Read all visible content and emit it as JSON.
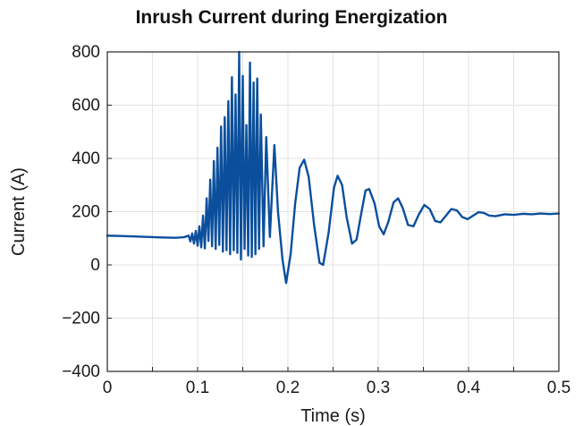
{
  "chart_data": {
    "type": "line",
    "title": "Inrush Current during Energization",
    "xlabel": "Time (s)",
    "ylabel": "Current (A)",
    "xlim": [
      0,
      0.5
    ],
    "ylim": [
      -400,
      800
    ],
    "grid": true,
    "x_ticks": [
      0,
      0.05,
      0.1,
      0.15,
      0.2,
      0.25,
      0.3,
      0.35,
      0.4,
      0.45,
      0.5
    ],
    "x_tick_labels": [
      "0",
      "",
      "0.1",
      "",
      "0.2",
      "",
      "0.3",
      "",
      "0.4",
      "",
      "0.5"
    ],
    "y_ticks": [
      -400,
      -200,
      0,
      200,
      400,
      600,
      800
    ],
    "y_tick_labels": [
      "−400",
      "−200",
      "0",
      "200",
      "400",
      "600",
      "800"
    ],
    "series": [
      {
        "color": "#0b4f9c",
        "points": [
          [
            0.0,
            110
          ],
          [
            0.03,
            107
          ],
          [
            0.06,
            103
          ],
          [
            0.075,
            102
          ],
          [
            0.085,
            104
          ],
          [
            0.09,
            110
          ],
          [
            0.092,
            88
          ],
          [
            0.094,
            118
          ],
          [
            0.096,
            80
          ],
          [
            0.098,
            128
          ],
          [
            0.1,
            72
          ],
          [
            0.102,
            145
          ],
          [
            0.104,
            66
          ],
          [
            0.106,
            185
          ],
          [
            0.108,
            62
          ],
          [
            0.11,
            250
          ],
          [
            0.112,
            90
          ],
          [
            0.114,
            320
          ],
          [
            0.116,
            70
          ],
          [
            0.118,
            390
          ],
          [
            0.12,
            60
          ],
          [
            0.122,
            440
          ],
          [
            0.124,
            75
          ],
          [
            0.126,
            520
          ],
          [
            0.128,
            50
          ],
          [
            0.13,
            555
          ],
          [
            0.132,
            55
          ],
          [
            0.134,
            615
          ],
          [
            0.136,
            40
          ],
          [
            0.138,
            705
          ],
          [
            0.14,
            55
          ],
          [
            0.142,
            640
          ],
          [
            0.144,
            45
          ],
          [
            0.146,
            800
          ],
          [
            0.148,
            20
          ],
          [
            0.15,
            710
          ],
          [
            0.152,
            60
          ],
          [
            0.154,
            525
          ],
          [
            0.156,
            35
          ],
          [
            0.158,
            760
          ],
          [
            0.16,
            30
          ],
          [
            0.162,
            685
          ],
          [
            0.164,
            40
          ],
          [
            0.166,
            700
          ],
          [
            0.168,
            60
          ],
          [
            0.17,
            565
          ],
          [
            0.173,
            70
          ],
          [
            0.176,
            480
          ],
          [
            0.18,
            105
          ],
          [
            0.185,
            450
          ],
          [
            0.189,
            200
          ],
          [
            0.194,
            20
          ],
          [
            0.198,
            -68
          ],
          [
            0.203,
            40
          ],
          [
            0.208,
            230
          ],
          [
            0.213,
            365
          ],
          [
            0.218,
            395
          ],
          [
            0.223,
            330
          ],
          [
            0.229,
            150
          ],
          [
            0.235,
            8
          ],
          [
            0.239,
            0
          ],
          [
            0.245,
            120
          ],
          [
            0.251,
            290
          ],
          [
            0.255,
            335
          ],
          [
            0.26,
            300
          ],
          [
            0.265,
            180
          ],
          [
            0.271,
            80
          ],
          [
            0.276,
            95
          ],
          [
            0.281,
            190
          ],
          [
            0.286,
            280
          ],
          [
            0.29,
            285
          ],
          [
            0.296,
            230
          ],
          [
            0.301,
            145
          ],
          [
            0.306,
            115
          ],
          [
            0.311,
            160
          ],
          [
            0.317,
            235
          ],
          [
            0.322,
            250
          ],
          [
            0.327,
            215
          ],
          [
            0.333,
            150
          ],
          [
            0.339,
            145
          ],
          [
            0.345,
            190
          ],
          [
            0.351,
            225
          ],
          [
            0.357,
            210
          ],
          [
            0.363,
            165
          ],
          [
            0.369,
            160
          ],
          [
            0.375,
            185
          ],
          [
            0.381,
            210
          ],
          [
            0.387,
            205
          ],
          [
            0.393,
            180
          ],
          [
            0.399,
            172
          ],
          [
            0.405,
            185
          ],
          [
            0.411,
            198
          ],
          [
            0.417,
            195
          ],
          [
            0.423,
            185
          ],
          [
            0.43,
            183
          ],
          [
            0.44,
            190
          ],
          [
            0.45,
            188
          ],
          [
            0.46,
            192
          ],
          [
            0.47,
            190
          ],
          [
            0.48,
            193
          ],
          [
            0.49,
            191
          ],
          [
            0.5,
            193
          ]
        ]
      }
    ]
  }
}
